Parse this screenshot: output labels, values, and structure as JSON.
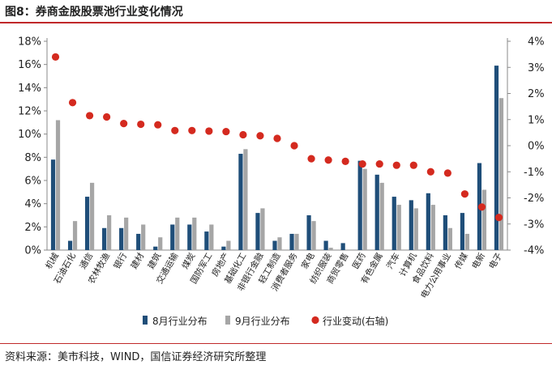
{
  "figure": {
    "title": "图8：券商金股股票池行业变化情况",
    "source": "资料来源：美市科技，WIND，国信证券经济研究所整理"
  },
  "chart_data": {
    "type": "bar",
    "categories": [
      "机械",
      "石油石化",
      "通信",
      "农林牧渔",
      "银行",
      "建材",
      "建筑",
      "交通运输",
      "煤炭",
      "国防军工",
      "房地产",
      "基础化工",
      "非银行金融",
      "轻工制造",
      "消费者服务",
      "家电",
      "纺织服装",
      "商贸零售",
      "医药",
      "有色金属",
      "汽车",
      "计算机",
      "食品饮料",
      "电力公用事业",
      "传媒",
      "电新",
      "电子"
    ],
    "series": [
      {
        "name": "8月行业分布",
        "kind": "bar",
        "axis": "left",
        "color": "#1f4e79",
        "values": [
          7.8,
          0.8,
          4.6,
          1.9,
          1.9,
          1.4,
          0.3,
          2.2,
          2.2,
          1.6,
          0.3,
          8.3,
          3.2,
          0.8,
          1.4,
          3.0,
          0.8,
          0.6,
          7.7,
          6.5,
          4.6,
          4.3,
          4.9,
          3.0,
          3.2,
          7.5,
          15.9
        ]
      },
      {
        "name": "9月行业分布",
        "kind": "bar",
        "axis": "left",
        "color": "#a6a6a6",
        "values": [
          11.2,
          2.5,
          5.8,
          3.0,
          2.8,
          2.2,
          1.1,
          2.8,
          2.8,
          2.2,
          0.8,
          8.7,
          3.6,
          1.1,
          1.4,
          2.5,
          0.2,
          0.0,
          7.0,
          5.8,
          3.9,
          3.6,
          3.9,
          1.9,
          1.4,
          5.2,
          13.1
        ]
      },
      {
        "name": "行业变动(右轴)",
        "kind": "dot",
        "axis": "right",
        "color": "#d42a1f",
        "values": [
          3.4,
          1.65,
          1.15,
          1.1,
          0.85,
          0.82,
          0.8,
          0.58,
          0.58,
          0.56,
          0.54,
          0.42,
          0.38,
          0.28,
          0.0,
          -0.5,
          -0.55,
          -0.6,
          -0.7,
          -0.7,
          -0.75,
          -0.75,
          -1.0,
          -1.05,
          -1.85,
          -2.35,
          -2.75
        ]
      }
    ],
    "y_left": {
      "min": 0,
      "max": 18,
      "step": 2,
      "unit": "%"
    },
    "y_right": {
      "min": -4,
      "max": 4,
      "step": 1,
      "unit": "%"
    },
    "legend": {
      "position": "bottom"
    },
    "grid": false
  }
}
